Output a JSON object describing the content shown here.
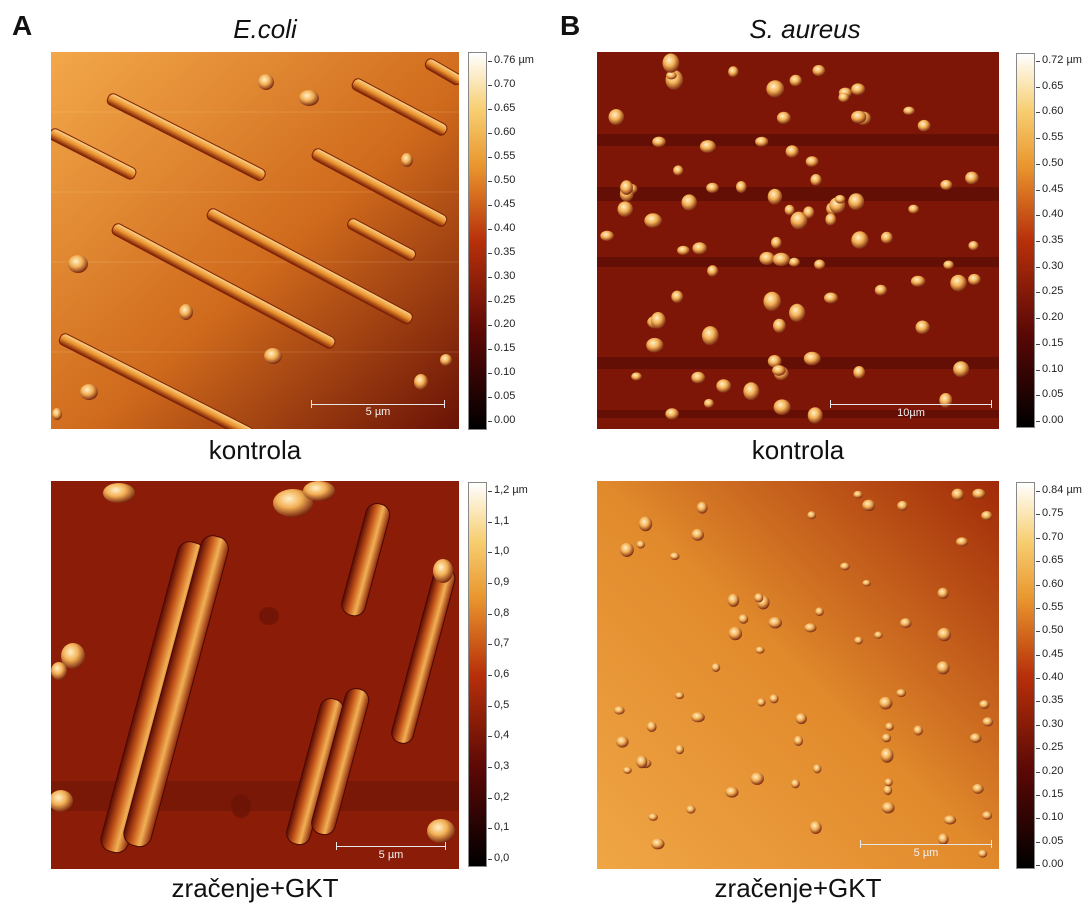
{
  "panel_a": {
    "letter": "A",
    "organism": "E.coli",
    "top_caption": "kontrola",
    "bottom_caption": "zračenje+GKT",
    "top_scalebar": "5 µm",
    "bottom_scalebar": "5 µm",
    "top_colorbar_ticks": [
      "0.76 µm",
      "0.70",
      "0.65",
      "0.60",
      "0.55",
      "0.50",
      "0.45",
      "0.40",
      "0.35",
      "0.30",
      "0.25",
      "0.20",
      "0.15",
      "0.10",
      "0.05",
      "0.00"
    ],
    "bottom_colorbar_ticks": [
      "1,2 µm",
      "1,1",
      "1,0",
      "0,9",
      "0,8",
      "0,7",
      "0,6",
      "0,5",
      "0,4",
      "0,3",
      "0,2",
      "0,1",
      "0,0"
    ]
  },
  "panel_b": {
    "letter": "B",
    "organism": "S. aureus",
    "top_caption": "kontrola",
    "bottom_caption": "zračenje+GKT",
    "top_scalebar": "10µm",
    "bottom_scalebar": "5 µm",
    "top_colorbar_ticks": [
      "0.72 µm",
      "0.65",
      "0.60",
      "0.55",
      "0.50",
      "0.45",
      "0.40",
      "0.35",
      "0.30",
      "0.25",
      "0.20",
      "0.15",
      "0.10",
      "0.05",
      "0.00"
    ],
    "bottom_colorbar_ticks": [
      "0.84 µm",
      "0.75",
      "0.70",
      "0.65",
      "0.60",
      "0.55",
      "0.50",
      "0.45",
      "0.40",
      "0.35",
      "0.30",
      "0.25",
      "0.20",
      "0.15",
      "0.10",
      "0.05",
      "0.00"
    ]
  },
  "colors": {
    "afm_dark": "#5a0a05",
    "afm_mid": "#a8320a",
    "afm_bright": "#f2a640",
    "afm_highlight": "#fde2a0"
  }
}
